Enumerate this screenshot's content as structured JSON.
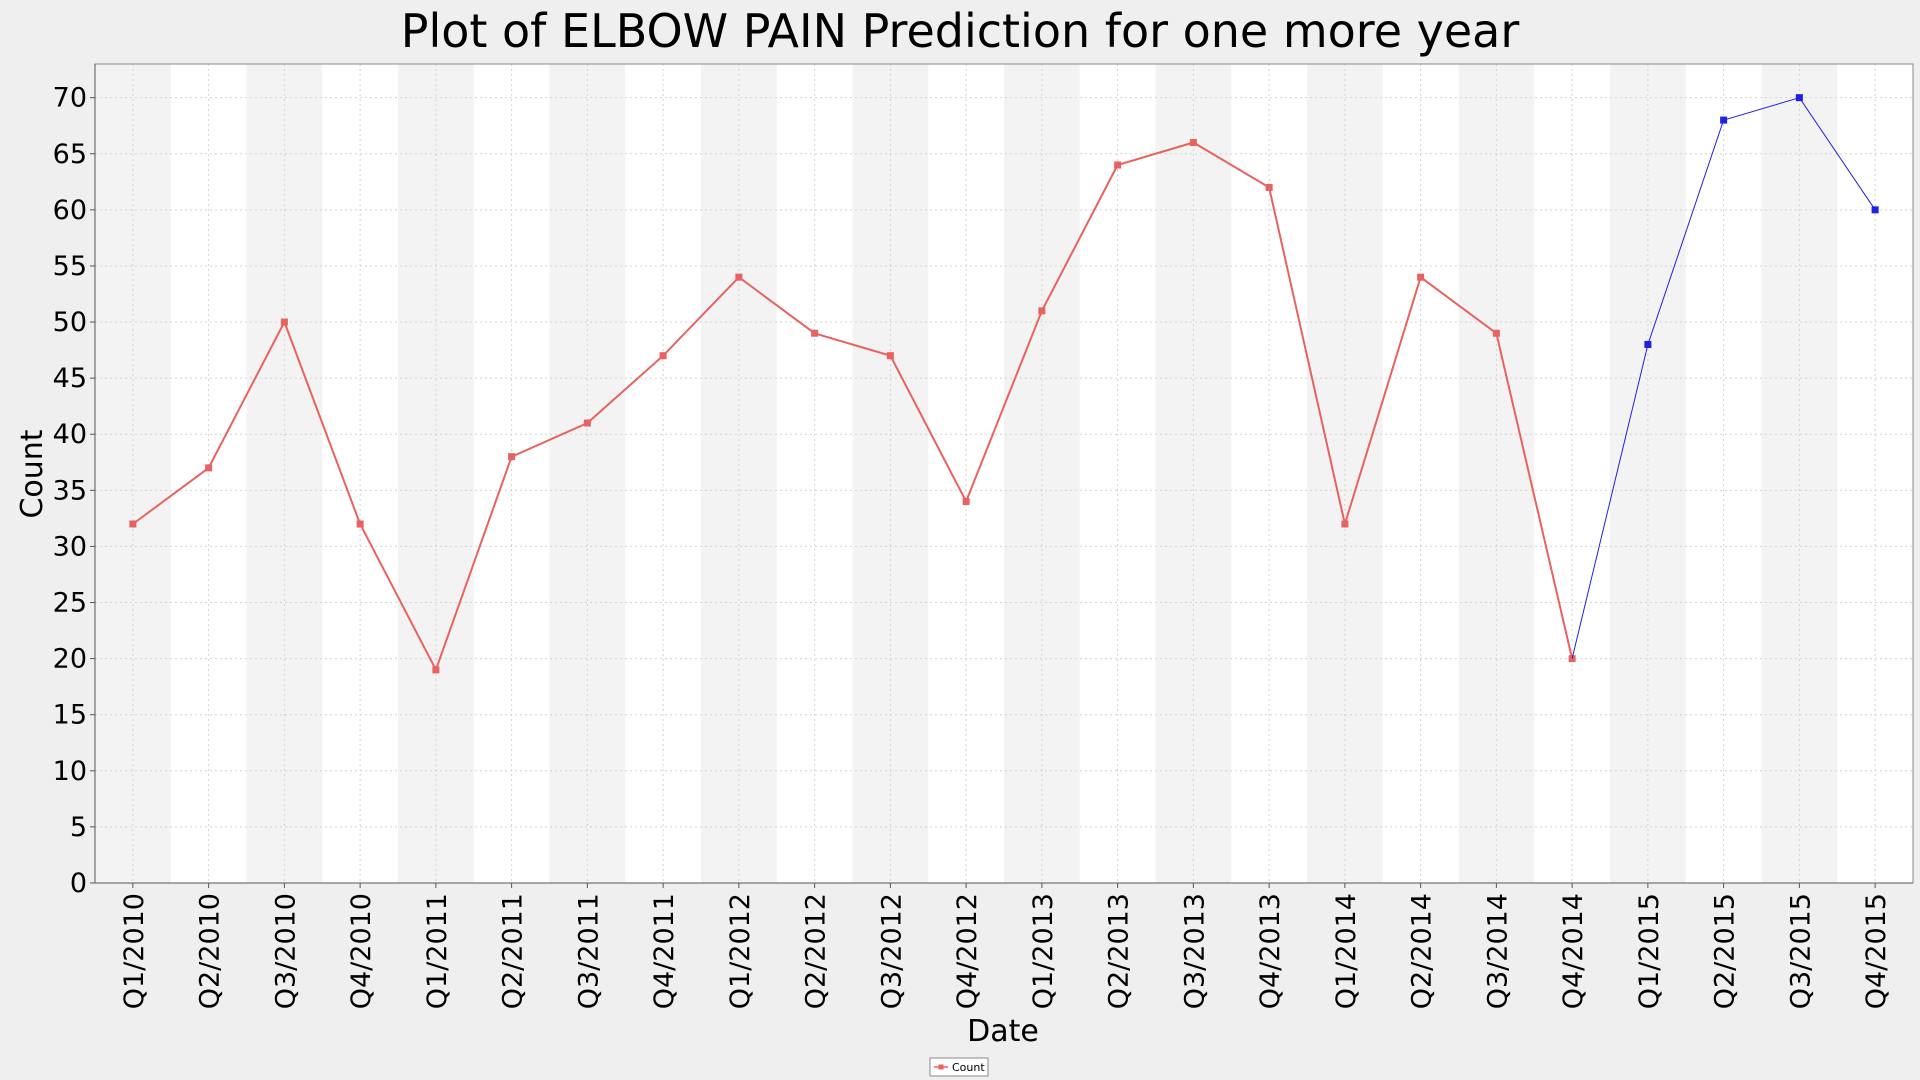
{
  "chart_data": {
    "type": "line",
    "title": "Plot of ELBOW PAIN Prediction for one more year",
    "xlabel": "Date",
    "ylabel": "Count",
    "ylim": [
      0,
      73
    ],
    "yticks": [
      0,
      5,
      10,
      15,
      20,
      25,
      30,
      35,
      40,
      45,
      50,
      55,
      60,
      65,
      70
    ],
    "grid": true,
    "alternating_bands": true,
    "legend_position": "bottom-center",
    "categories": [
      "Q1/2010",
      "Q2/2010",
      "Q3/2010",
      "Q4/2010",
      "Q1/2011",
      "Q2/2011",
      "Q3/2011",
      "Q4/2011",
      "Q1/2012",
      "Q2/2012",
      "Q3/2012",
      "Q4/2012",
      "Q1/2013",
      "Q2/2013",
      "Q3/2013",
      "Q4/2013",
      "Q1/2014",
      "Q2/2014",
      "Q3/2014",
      "Q4/2014",
      "Q1/2015",
      "Q2/2015",
      "Q3/2015",
      "Q4/2015"
    ],
    "series": [
      {
        "name": "Count",
        "color": "#e8625f",
        "in_legend": true,
        "values": [
          32,
          37,
          50,
          32,
          19,
          38,
          41,
          47,
          54,
          49,
          47,
          34,
          51,
          64,
          66,
          62,
          32,
          54,
          49,
          20,
          null,
          null,
          null,
          null
        ]
      },
      {
        "name": "",
        "color": "#2020e0",
        "in_legend": false,
        "values": [
          null,
          null,
          null,
          null,
          null,
          null,
          null,
          null,
          null,
          null,
          null,
          null,
          null,
          null,
          null,
          null,
          null,
          null,
          null,
          20,
          48,
          68,
          70,
          60
        ]
      }
    ]
  }
}
